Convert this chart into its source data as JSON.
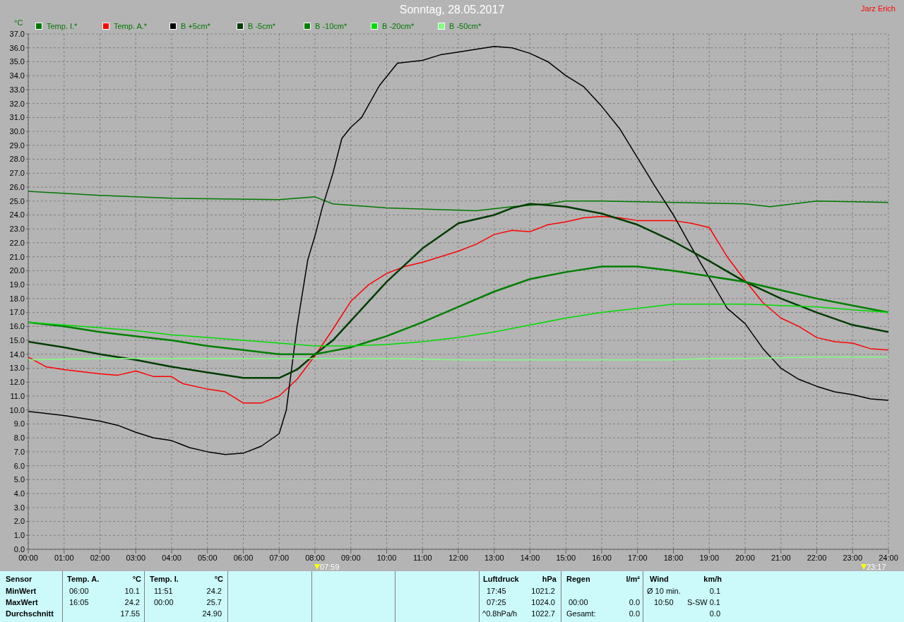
{
  "chart_data": {
    "type": "line",
    "title": "Sonntag, 28.05.2017",
    "ylabel": "°C",
    "legend": "top",
    "grid": true,
    "xlim": [
      0,
      24
    ],
    "xticks": [
      {
        "value": 0,
        "label": "00:00"
      },
      {
        "value": 1,
        "label": "01:00"
      },
      {
        "value": 2,
        "label": "02:00"
      },
      {
        "value": 3,
        "label": "03:00"
      },
      {
        "value": 4,
        "label": "04:00"
      },
      {
        "value": 5,
        "label": "05:00"
      },
      {
        "value": 6,
        "label": "06:00"
      },
      {
        "value": 7,
        "label": "07:00"
      },
      {
        "value": 8,
        "label": "08:00"
      },
      {
        "value": 9,
        "label": "09:00"
      },
      {
        "value": 10,
        "label": "10:00"
      },
      {
        "value": 11,
        "label": "11:00"
      },
      {
        "value": 12,
        "label": "12:00"
      },
      {
        "value": 13,
        "label": "13:00"
      },
      {
        "value": 14,
        "label": "14:00"
      },
      {
        "value": 15,
        "label": "15:00"
      },
      {
        "value": 16,
        "label": "16:00"
      },
      {
        "value": 17,
        "label": "17:00"
      },
      {
        "value": 18,
        "label": "18:00"
      },
      {
        "value": 19,
        "label": "19:00"
      },
      {
        "value": 20,
        "label": "20:00"
      },
      {
        "value": 21,
        "label": "21:00"
      },
      {
        "value": 22,
        "label": "22:00"
      },
      {
        "value": 23,
        "label": "23:00"
      },
      {
        "value": 24,
        "label": "24:00"
      }
    ],
    "ylim": [
      0,
      37
    ],
    "yticks": [
      {
        "value": 0,
        "label": "0.0"
      },
      {
        "value": 1,
        "label": "1.0"
      },
      {
        "value": 2,
        "label": "2.0"
      },
      {
        "value": 3,
        "label": "3.0"
      },
      {
        "value": 4,
        "label": "4.0"
      },
      {
        "value": 5,
        "label": "5.0"
      },
      {
        "value": 6,
        "label": "6.0"
      },
      {
        "value": 7,
        "label": "7.0"
      },
      {
        "value": 8,
        "label": "8.0"
      },
      {
        "value": 9,
        "label": "9.0"
      },
      {
        "value": 10,
        "label": "10.0"
      },
      {
        "value": 11,
        "label": "11.0"
      },
      {
        "value": 12,
        "label": "12.0"
      },
      {
        "value": 13,
        "label": "13.0"
      },
      {
        "value": 14,
        "label": "14.0"
      },
      {
        "value": 15,
        "label": "15.0"
      },
      {
        "value": 16,
        "label": "16.0"
      },
      {
        "value": 17,
        "label": "17.0"
      },
      {
        "value": 18,
        "label": "18.0"
      },
      {
        "value": 19,
        "label": "19.0"
      },
      {
        "value": 20,
        "label": "20.0"
      },
      {
        "value": 21,
        "label": "21.0"
      },
      {
        "value": 22,
        "label": "22.0"
      },
      {
        "value": 23,
        "label": "23.0"
      },
      {
        "value": 24,
        "label": "24.0"
      },
      {
        "value": 25,
        "label": "25.0"
      },
      {
        "value": 26,
        "label": "26.0"
      },
      {
        "value": 27,
        "label": "27.0"
      },
      {
        "value": 28,
        "label": "28.0"
      },
      {
        "value": 29,
        "label": "29.0"
      },
      {
        "value": 30,
        "label": "30.0"
      },
      {
        "value": 31,
        "label": "31.0"
      },
      {
        "value": 32,
        "label": "32.0"
      },
      {
        "value": 33,
        "label": "33.0"
      },
      {
        "value": 34,
        "label": "34.0"
      },
      {
        "value": 35,
        "label": "35.0"
      },
      {
        "value": 36,
        "label": "36.0"
      },
      {
        "value": 37,
        "label": "37.0"
      }
    ],
    "series": [
      {
        "name": "Temp. I.*",
        "color": "#007800",
        "x": [
          0,
          2,
          4,
          7,
          8,
          8.5,
          10,
          12.5,
          13.5,
          14.5,
          15,
          16,
          18,
          20,
          20.7,
          22,
          24
        ],
        "values": [
          25.7,
          25.4,
          25.2,
          25.1,
          25.3,
          24.8,
          24.5,
          24.3,
          24.6,
          24.8,
          25.0,
          25.0,
          24.9,
          24.8,
          24.6,
          25.0,
          24.9
        ]
      },
      {
        "name": "Temp. A.*",
        "color": "#ff0000",
        "x": [
          0,
          0.5,
          1,
          2,
          2.5,
          3,
          3.5,
          4,
          4.3,
          5,
          5.5,
          6,
          6.5,
          7,
          7.5,
          8,
          8.5,
          9,
          9.5,
          10,
          10.5,
          11,
          12,
          12.5,
          13,
          13.5,
          14,
          14.5,
          15,
          15.5,
          16,
          16.5,
          17,
          17.5,
          18,
          18.5,
          19,
          19.5,
          20,
          20.5,
          21,
          21.5,
          22,
          22.5,
          23,
          23.5,
          24
        ],
        "values": [
          13.8,
          13.1,
          12.9,
          12.6,
          12.5,
          12.8,
          12.4,
          12.4,
          11.9,
          11.5,
          11.3,
          10.5,
          10.5,
          11.0,
          12.2,
          13.9,
          15.8,
          17.8,
          19.0,
          19.8,
          20.3,
          20.6,
          21.4,
          21.9,
          22.6,
          22.9,
          22.8,
          23.3,
          23.5,
          23.8,
          23.9,
          23.8,
          23.6,
          23.6,
          23.6,
          23.4,
          23.1,
          21.0,
          19.3,
          17.7,
          16.6,
          16.0,
          15.2,
          14.9,
          14.8,
          14.4,
          14.3
        ]
      },
      {
        "name": "B +5cm*",
        "color": "#000000",
        "x": [
          0,
          1,
          2,
          2.5,
          3,
          3.5,
          4,
          4.5,
          5,
          5.5,
          6,
          6.5,
          7,
          7.2,
          7.5,
          7.8,
          8,
          8.2,
          8.5,
          8.75,
          9,
          9.3,
          9.8,
          10.3,
          11,
          11.5,
          12,
          12.5,
          13,
          13.5,
          14,
          14.5,
          15,
          15.5,
          16,
          16.5,
          17,
          17.5,
          18,
          18.5,
          19,
          19.5,
          20,
          20.5,
          21,
          21.5,
          22,
          22.5,
          23,
          23.5,
          24
        ],
        "values": [
          9.9,
          9.6,
          9.2,
          8.9,
          8.4,
          8.0,
          7.8,
          7.3,
          7.0,
          6.8,
          6.9,
          7.4,
          8.3,
          10.0,
          16.0,
          20.8,
          22.5,
          24.5,
          27.0,
          29.5,
          30.3,
          31.0,
          33.3,
          34.9,
          35.1,
          35.5,
          35.7,
          35.9,
          36.1,
          36.0,
          35.6,
          35.0,
          34.0,
          33.2,
          31.8,
          30.2,
          28.1,
          26.0,
          24.0,
          21.7,
          19.5,
          17.3,
          16.2,
          14.4,
          13.0,
          12.2,
          11.7,
          11.3,
          11.1,
          10.8,
          10.7
        ]
      },
      {
        "name": "B -5cm*",
        "color": "#003c00",
        "x": [
          0,
          1,
          2,
          3,
          4,
          5,
          6,
          7,
          7.5,
          8,
          8.5,
          9,
          10,
          11,
          12,
          13,
          13.5,
          14,
          15,
          16,
          17,
          18,
          19,
          20,
          21,
          22,
          23,
          24
        ],
        "values": [
          14.9,
          14.5,
          14.0,
          13.6,
          13.1,
          12.7,
          12.3,
          12.3,
          12.9,
          14.0,
          15.0,
          16.4,
          19.2,
          21.6,
          23.4,
          24.0,
          24.5,
          24.8,
          24.6,
          24.1,
          23.3,
          22.1,
          20.7,
          19.2,
          18.0,
          17.0,
          16.1,
          15.6
        ]
      },
      {
        "name": "B -10cm*",
        "color": "#008000",
        "x": [
          0,
          1,
          2,
          3,
          4,
          5,
          6,
          7,
          8,
          9,
          10,
          11,
          12,
          13,
          14,
          15,
          16,
          17,
          18,
          19,
          20,
          21,
          22,
          23,
          24
        ],
        "values": [
          16.3,
          16.0,
          15.6,
          15.3,
          15.0,
          14.6,
          14.3,
          14.0,
          14.0,
          14.5,
          15.3,
          16.3,
          17.4,
          18.5,
          19.4,
          19.9,
          20.3,
          20.3,
          20.0,
          19.6,
          19.2,
          18.6,
          18.0,
          17.5,
          17.0
        ]
      },
      {
        "name": "B -20cm*",
        "color": "#00dc00",
        "x": [
          0,
          1,
          2,
          3,
          4,
          5,
          6,
          7,
          8,
          9,
          10,
          11,
          12,
          13,
          14,
          15,
          16,
          17,
          18,
          19,
          20,
          21,
          22,
          23,
          24
        ],
        "values": [
          16.3,
          16.1,
          15.9,
          15.7,
          15.4,
          15.2,
          15.0,
          14.8,
          14.6,
          14.6,
          14.7,
          14.9,
          15.2,
          15.6,
          16.1,
          16.6,
          17.0,
          17.3,
          17.6,
          17.6,
          17.6,
          17.5,
          17.4,
          17.2,
          17.0
        ]
      },
      {
        "name": "B -50cm*",
        "color": "#80ff80",
        "x": [
          0,
          2,
          4,
          6,
          8,
          10,
          12,
          14,
          16,
          18,
          19,
          20,
          22,
          24
        ],
        "values": [
          13.6,
          13.7,
          13.7,
          13.7,
          13.7,
          13.7,
          13.6,
          13.6,
          13.6,
          13.6,
          13.7,
          13.7,
          13.8,
          13.8
        ]
      }
    ],
    "annotations": [
      "Jarz Erich",
      "Sensor",
      "MinWert",
      "MaxWert",
      "Durchschnitt",
      "Temp. A.",
      "°C",
      "06:00",
      "10.1",
      "16:05",
      "24.2",
      "17.55",
      "Temp. I.",
      "°C",
      "11:51",
      "24.2",
      "00:00",
      "25.7",
      "24.90",
      "Luftdruck",
      "hPa",
      "17:45",
      "1021.2",
      "07:25",
      "1024.0",
      "^0.8hPa/h",
      "1022.7",
      "Regen",
      "l/m²",
      "00:00",
      "0.0",
      "Gesamt:",
      "0.0",
      "Wind",
      "km/h",
      "Ø 10 min.",
      "0.1",
      "10:50",
      "S-SW 0.1",
      "0.0",
      "07:59",
      "23:17"
    ]
  }
}
